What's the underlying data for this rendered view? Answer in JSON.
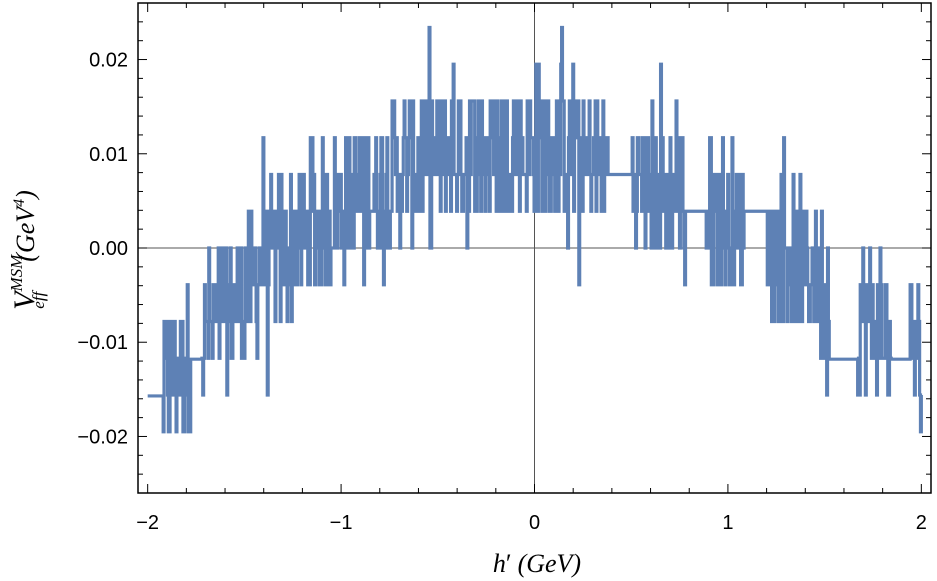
{
  "chart_data": {
    "type": "line",
    "title": "",
    "xlabel": "h′ (GeV)",
    "ylabel": "V_eff^MSM (GeV⁴)",
    "xlabel_parts": {
      "var": "h",
      "prime": "′",
      "unit": "(GeV)"
    },
    "ylabel_parts": {
      "var": "V",
      "sub": "eff",
      "sup": "MSM",
      "unit_open": "(GeV",
      "unit_sup": "4",
      "unit_close": ")"
    },
    "xlim": [
      -2.05,
      2.05
    ],
    "ylim": [
      -0.026,
      0.026
    ],
    "x_ticks": [
      {
        "value": -2,
        "label": "−2"
      },
      {
        "value": -1,
        "label": "−1"
      },
      {
        "value": 0,
        "label": "0"
      },
      {
        "value": 1,
        "label": "1"
      },
      {
        "value": 2,
        "label": "2"
      }
    ],
    "y_ticks": [
      {
        "value": -0.02,
        "label": "−0.02"
      },
      {
        "value": -0.01,
        "label": "−0.01"
      },
      {
        "value": 0,
        "label": "0.00"
      },
      {
        "value": 0.01,
        "label": "0.01"
      },
      {
        "value": 0.02,
        "label": "0.02"
      }
    ],
    "grid": false,
    "frame": true,
    "series": [
      {
        "color": "#5e81b5",
        "envelope": {
          "x": [
            -2.0,
            -1.9,
            -1.8,
            -1.7,
            -1.6,
            -1.5,
            -1.4,
            -1.3,
            -1.2,
            -1.1,
            -1.0,
            -0.9,
            -0.8,
            -0.7,
            -0.6,
            -0.5,
            -0.4,
            -0.3,
            -0.2,
            -0.1,
            0.0,
            0.1,
            0.2,
            0.3,
            0.4,
            0.5,
            0.6,
            0.7,
            0.8,
            0.9,
            1.0,
            1.1,
            1.2,
            1.3,
            1.4,
            1.5,
            1.6,
            1.7,
            1.8,
            1.9,
            2.0
          ],
          "y": [
            -0.0157,
            -0.0145,
            -0.0118,
            -0.0092,
            -0.0066,
            -0.0043,
            -0.0022,
            -0.0002,
            0.0016,
            0.0033,
            0.0048,
            0.0061,
            0.0072,
            0.0082,
            0.009,
            0.0096,
            0.0101,
            0.0104,
            0.0106,
            0.0106,
            0.0105,
            0.0102,
            0.0097,
            0.0091,
            0.0084,
            0.0076,
            0.0068,
            0.006,
            0.0051,
            0.004,
            0.0029,
            0.0017,
            0.0004,
            -0.001,
            -0.0025,
            -0.004,
            -0.0056,
            -0.0072,
            -0.0088,
            -0.0105,
            -0.012
          ]
        },
        "noise_amplitude": 0.0078,
        "quantization_step": 0.0039,
        "x_start": -2.0,
        "x_end": 2.0,
        "samples": 900,
        "flat_segments": [
          {
            "x0": -2.0,
            "x1": -1.92,
            "y": -0.0157
          },
          {
            "x0": -1.78,
            "x1": -1.72,
            "y": -0.0118
          },
          {
            "x0": 0.38,
            "x1": 0.5,
            "y": 0.0078
          },
          {
            "x0": 0.78,
            "x1": 0.88,
            "y": 0.0039
          },
          {
            "x0": 1.08,
            "x1": 1.2,
            "y": 0.0039
          },
          {
            "x0": 1.52,
            "x1": 1.67,
            "y": -0.0118
          },
          {
            "x0": 1.84,
            "x1": 1.94,
            "y": -0.0118
          }
        ]
      }
    ]
  }
}
